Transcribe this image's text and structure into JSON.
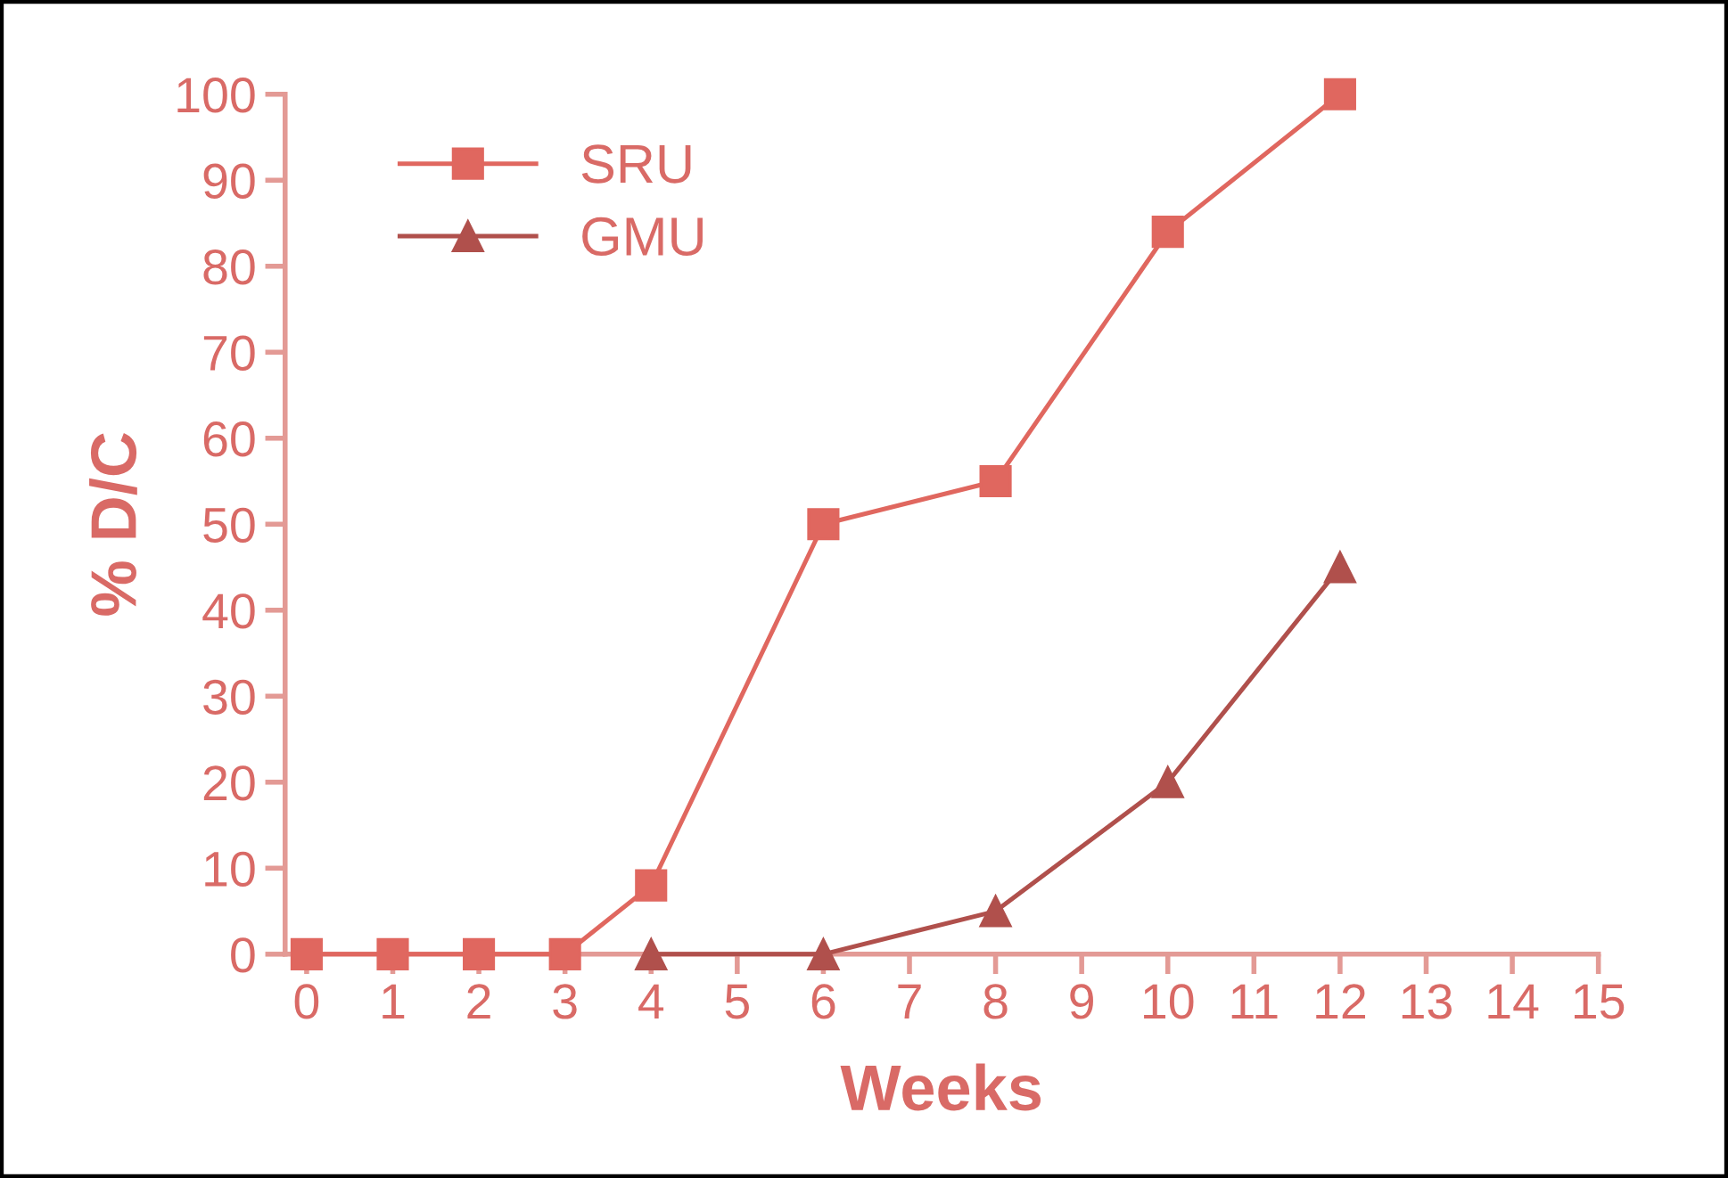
{
  "chart_data": {
    "type": "line",
    "xlabel": "Weeks",
    "ylabel": "% D/C",
    "xlim": [
      -0.25,
      15
    ],
    "ylim": [
      0,
      100
    ],
    "xticks": [
      0,
      1,
      2,
      3,
      4,
      5,
      6,
      7,
      8,
      9,
      10,
      11,
      12,
      13,
      14,
      15
    ],
    "yticks": [
      0,
      10,
      20,
      30,
      40,
      50,
      60,
      70,
      80,
      90,
      100
    ],
    "grid": false,
    "legend": "top left",
    "series": [
      {
        "name": "SRU",
        "color": "#e0675f",
        "marker": "square",
        "x": [
          0,
          1,
          2,
          3,
          4,
          6,
          8,
          10,
          12
        ],
        "values": [
          0,
          0,
          0,
          0,
          8,
          50,
          55,
          84,
          100
        ]
      },
      {
        "name": "GMU",
        "color": "#b0504c",
        "marker": "triangle",
        "x": [
          4,
          6,
          8,
          10,
          12
        ],
        "values": [
          0,
          0,
          5,
          20,
          45
        ]
      }
    ]
  }
}
